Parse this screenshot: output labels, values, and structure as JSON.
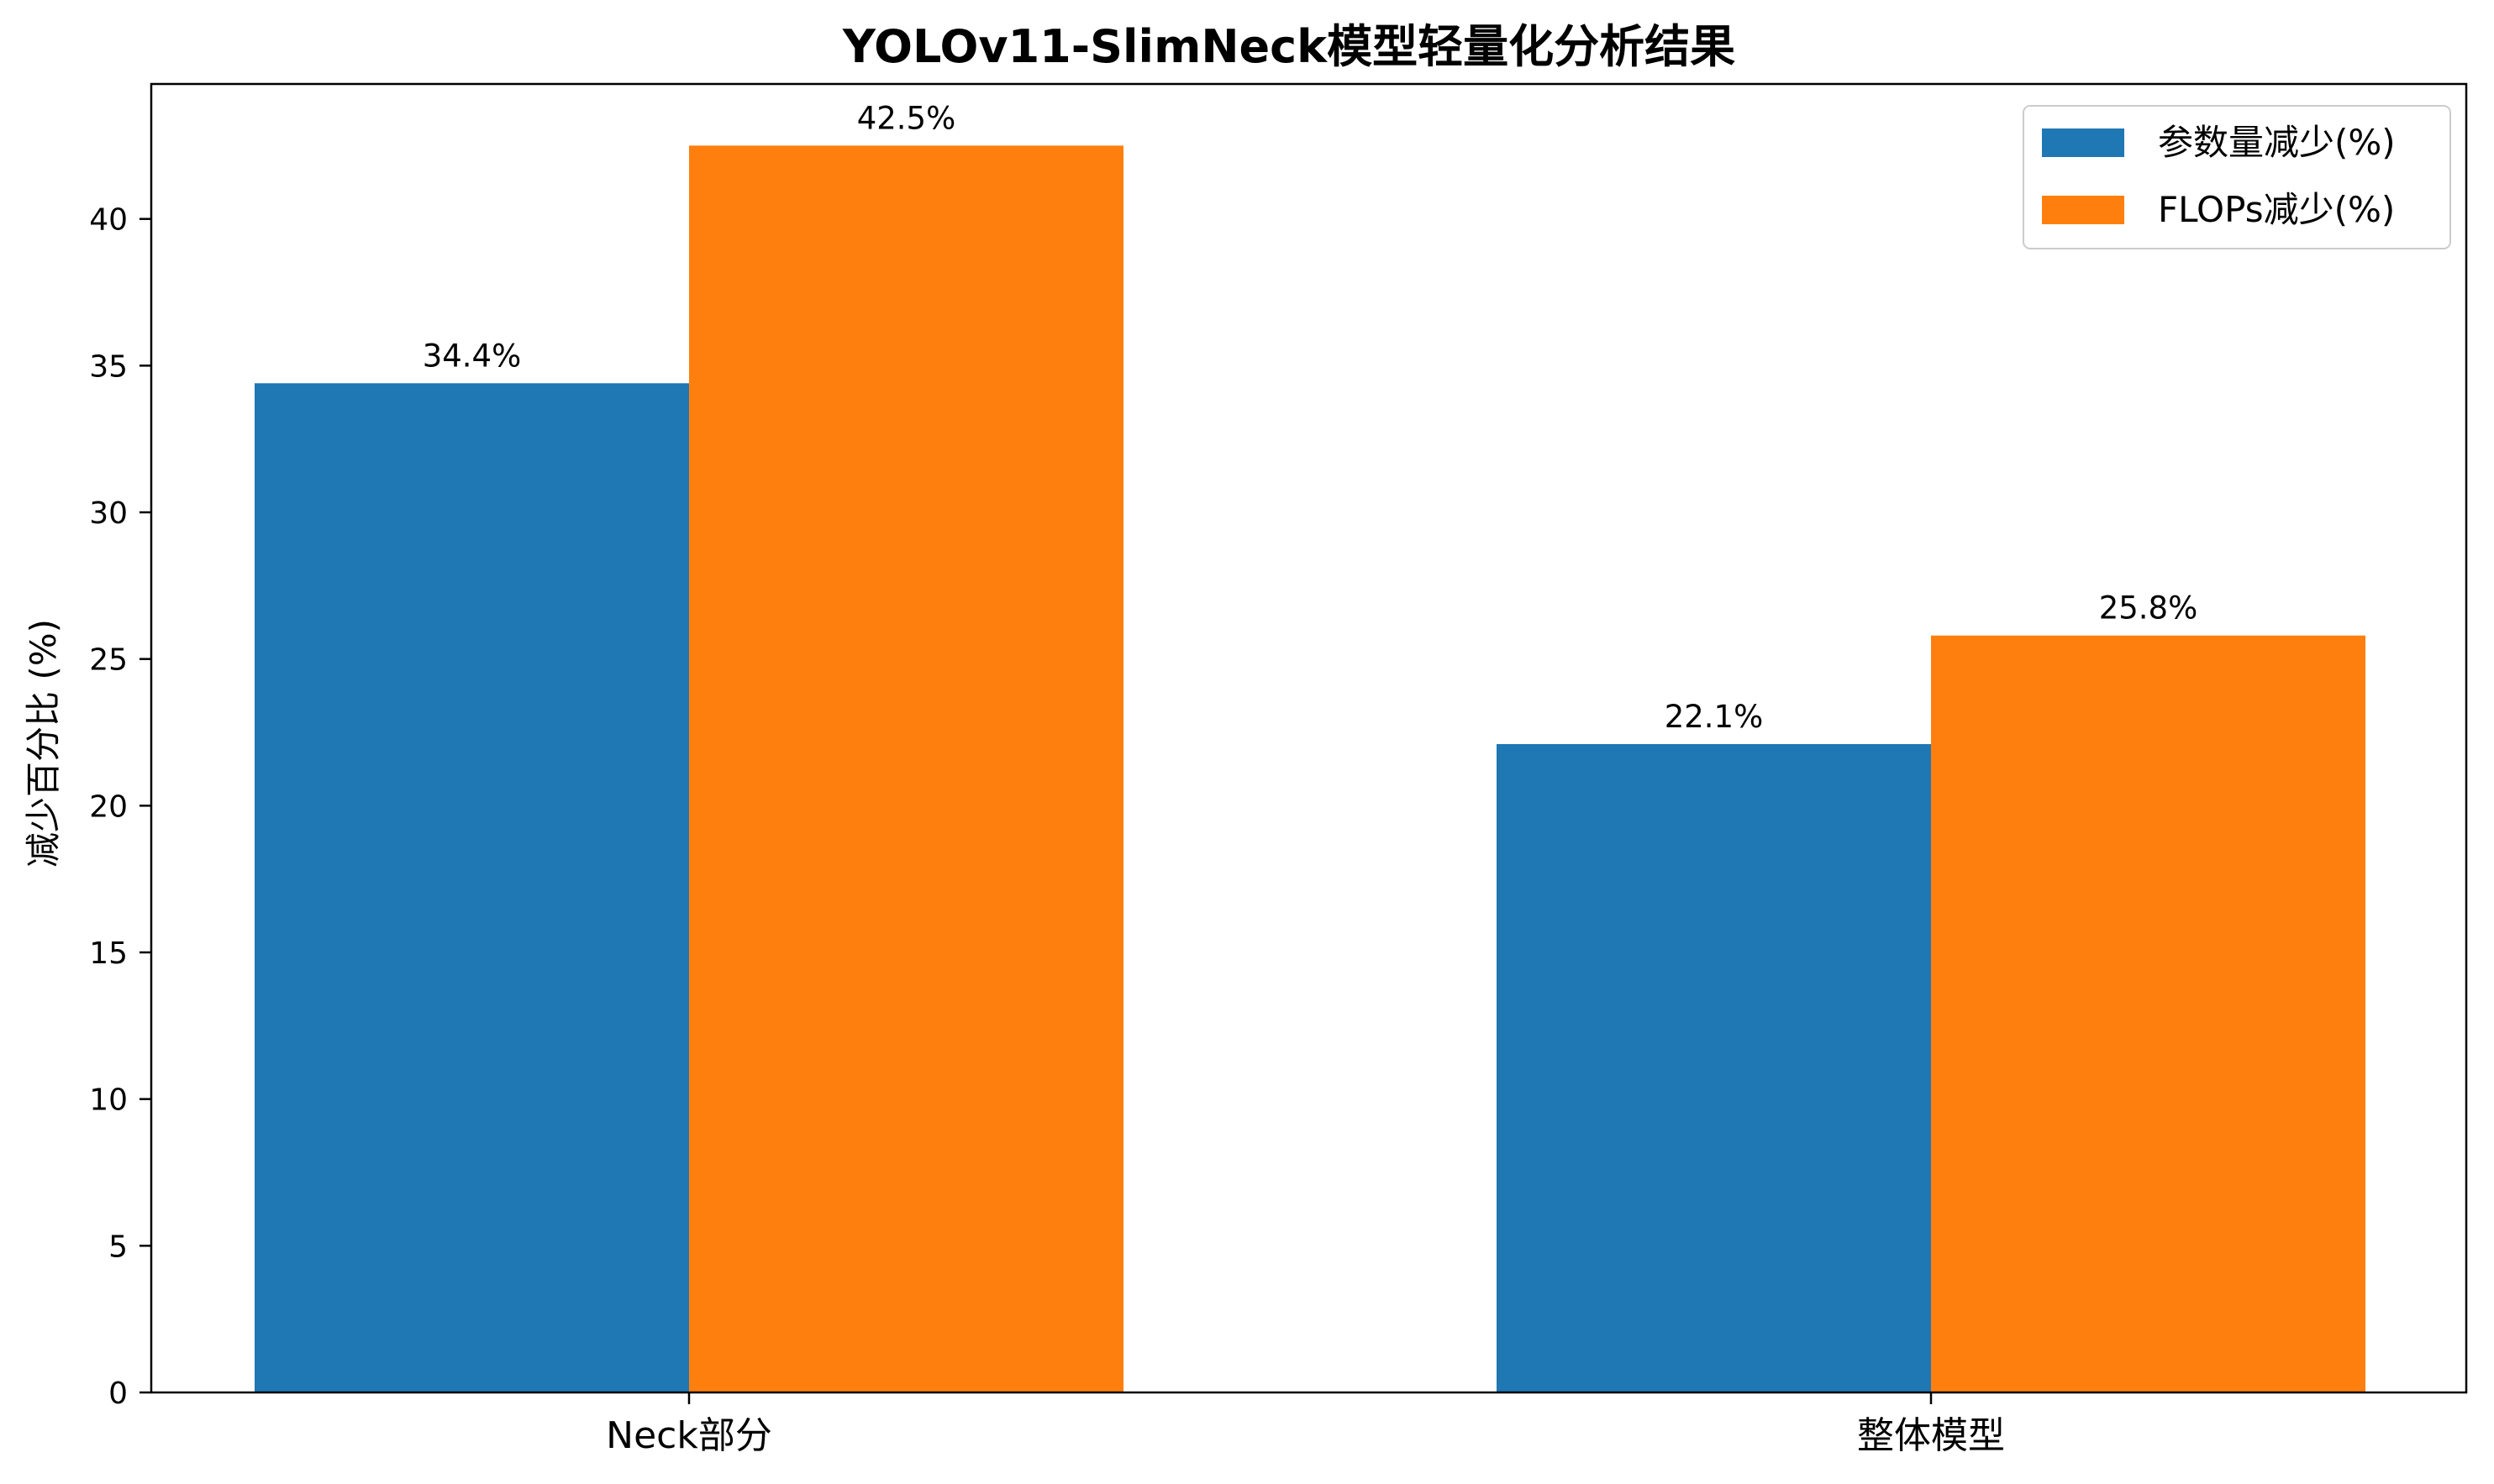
{
  "chart_data": {
    "type": "bar",
    "title": "YOLOv11-SlimNeck模型轻量化分析结果",
    "xlabel": "",
    "ylabel": "减少百分比 (%)",
    "categories": [
      "Neck部分",
      "整体模型"
    ],
    "series": [
      {
        "name": "参数量减少(%)",
        "values": [
          34.4,
          22.1
        ],
        "labels": [
          "34.4%",
          "22.1%"
        ],
        "color": "#1f77b4"
      },
      {
        "name": "FLOPs减少(%)",
        "values": [
          42.5,
          25.8
        ],
        "labels": [
          "42.5%",
          "25.8%"
        ],
        "color": "#ff7f0e"
      }
    ],
    "ylim": [
      0,
      44.6
    ],
    "yticks": [
      0,
      5,
      10,
      15,
      20,
      25,
      30,
      35,
      40
    ],
    "ytick_labels": [
      "0",
      "5",
      "10",
      "15",
      "20",
      "25",
      "30",
      "35",
      "40"
    ],
    "grid": false,
    "legend_position": "top-right"
  }
}
